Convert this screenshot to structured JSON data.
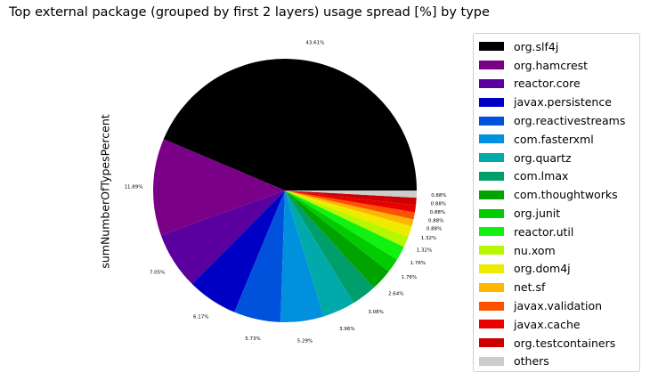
{
  "chart_data": {
    "type": "pie",
    "title": "Top external package (grouped by first 2 layers) usage spread [%] by type",
    "ylabel": "sumNumberOfTypesPercent",
    "legend_position": "right",
    "slices": [
      {
        "name": "org.slf4j",
        "value": 43.61,
        "label": "43.61%",
        "color": "#000000"
      },
      {
        "name": "org.hamcrest",
        "value": 11.89,
        "label": "11.89%",
        "color": "#7a0088"
      },
      {
        "name": "reactor.core",
        "value": 7.05,
        "label": "7.05%",
        "color": "#5a009e"
      },
      {
        "name": "javax.persistence",
        "value": 6.17,
        "label": "6.17%",
        "color": "#0000c4"
      },
      {
        "name": "org.reactivestreams",
        "value": 5.73,
        "label": "5.73%",
        "color": "#0052dd"
      },
      {
        "name": "com.fasterxml",
        "value": 5.29,
        "label": "5.29%",
        "color": "#0090dd"
      },
      {
        "name": "org.quartz",
        "value": 3.96,
        "label": "3.96%",
        "color": "#00aaaa"
      },
      {
        "name": "com.lmax",
        "value": 3.08,
        "label": "3.08%",
        "color": "#009e6a"
      },
      {
        "name": "com.thoughtworks",
        "value": 2.64,
        "label": "2.64%",
        "color": "#00a300"
      },
      {
        "name": "org.junit",
        "value": 1.76,
        "label": "1.76%",
        "color": "#00cc00"
      },
      {
        "name": "reactor.util",
        "value": 1.76,
        "label": "1.76%",
        "color": "#11f211"
      },
      {
        "name": "nu.xom",
        "value": 1.32,
        "label": "1.32%",
        "color": "#b7f700"
      },
      {
        "name": "org.dom4j",
        "value": 1.32,
        "label": "1.32%",
        "color": "#eeea00"
      },
      {
        "name": "net.sf",
        "value": 0.88,
        "label": "0.88%",
        "color": "#ffb600"
      },
      {
        "name": "javax.validation",
        "value": 0.88,
        "label": "0.88%",
        "color": "#ff5200"
      },
      {
        "name": "javax.cache",
        "value": 0.88,
        "label": "0.88%",
        "color": "#e80000"
      },
      {
        "name": "org.testcontainers",
        "value": 0.88,
        "label": "0.88%",
        "color": "#cc0000"
      },
      {
        "name": "others",
        "value": 0.88,
        "label": "0.88%",
        "color": "#cccccc"
      }
    ]
  }
}
